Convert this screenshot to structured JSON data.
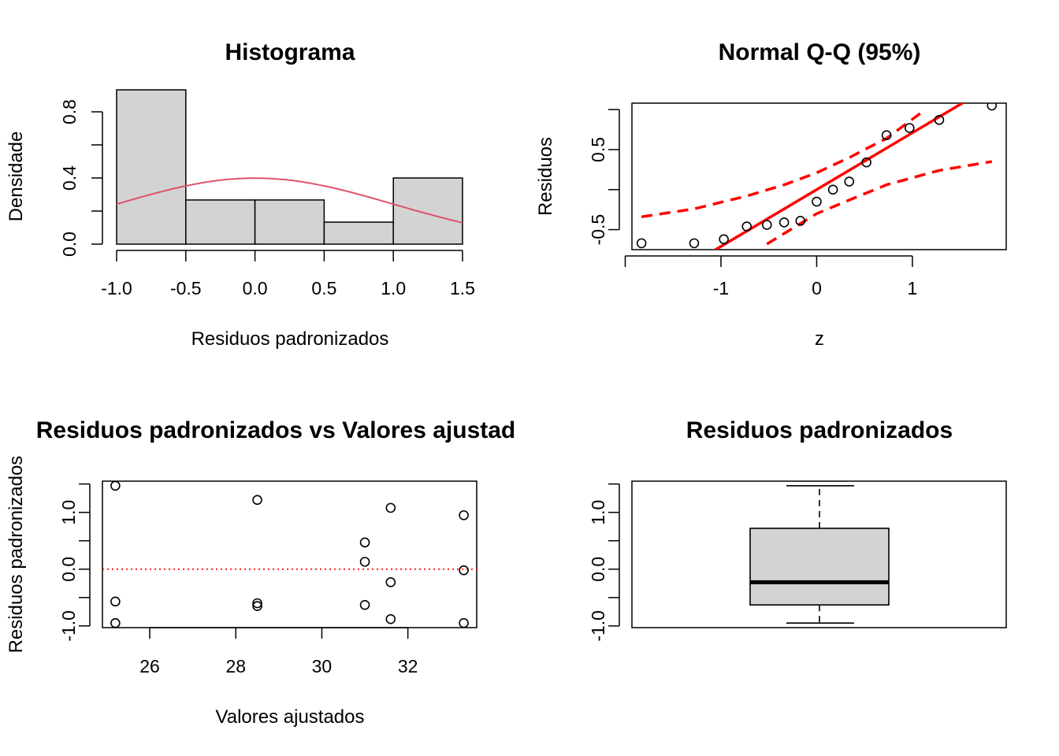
{
  "chart_data": [
    {
      "type": "bar",
      "title": "Histograma",
      "xlabel": "Residuos padronizados",
      "ylabel": "Densidade",
      "xlim": [
        -1.0,
        1.5
      ],
      "ylim": [
        0,
        1.0
      ],
      "xticks": [
        "-1.0",
        "-0.5",
        "0.0",
        "0.5",
        "1.0",
        "1.5"
      ],
      "yticks": [
        "0.0",
        "0.4",
        "0.8"
      ],
      "bins": [
        [
          -1.0,
          -0.5
        ],
        [
          -0.5,
          0.0
        ],
        [
          0.0,
          0.5
        ],
        [
          0.5,
          1.0
        ],
        [
          1.0,
          1.5
        ]
      ],
      "values": [
        0.933,
        0.267,
        0.267,
        0.133,
        0.4
      ],
      "bar_color": "#d3d3d3",
      "overlay": {
        "type": "normal-density",
        "mean": 0,
        "sd": 1,
        "color": "#df536b"
      }
    },
    {
      "type": "scatter",
      "title": "Normal Q-Q (95%)",
      "xlabel": "z",
      "ylabel": "Residuos",
      "xlim": [
        -1.93,
        1.98
      ],
      "ylim": [
        -0.75,
        1.08
      ],
      "xticks": [
        "-1",
        "0",
        "1"
      ],
      "yticks": [
        "-0.5",
        "0.5"
      ],
      "points": [
        [
          -1.83,
          -0.67
        ],
        [
          -1.28,
          -0.67
        ],
        [
          -0.97,
          -0.62
        ],
        [
          -0.73,
          -0.46
        ],
        [
          -0.52,
          -0.44
        ],
        [
          -0.34,
          -0.41
        ],
        [
          -0.17,
          -0.39
        ],
        [
          0.0,
          -0.15
        ],
        [
          0.17,
          0.0
        ],
        [
          0.34,
          0.1
        ],
        [
          0.52,
          0.34
        ],
        [
          0.73,
          0.68
        ],
        [
          0.97,
          0.77
        ],
        [
          1.28,
          0.87
        ],
        [
          1.83,
          1.05
        ]
      ],
      "reference_line": {
        "slope": 0.71,
        "intercept": 0.0,
        "color": "#ff0000"
      },
      "band_upper": [
        [
          -1.83,
          -0.34
        ],
        [
          -1.28,
          -0.24
        ],
        [
          -0.73,
          -0.08
        ],
        [
          -0.34,
          0.06
        ],
        [
          0.0,
          0.21
        ],
        [
          0.34,
          0.4
        ],
        [
          0.73,
          0.64
        ],
        [
          1.08,
          0.95
        ]
      ],
      "band_lower": [
        [
          -0.52,
          -0.68
        ],
        [
          0.0,
          -0.3
        ],
        [
          0.34,
          -0.13
        ],
        [
          0.73,
          0.06
        ],
        [
          1.28,
          0.24
        ],
        [
          1.83,
          0.35
        ]
      ],
      "line_color": "#ff0000"
    },
    {
      "type": "scatter",
      "title": "Residuos padronizados vs Valores ajustad",
      "xlabel": "Valores ajustados",
      "ylabel": "Residuos padronizados",
      "xlim": [
        24.9,
        33.6
      ],
      "ylim": [
        -1.03,
        1.55
      ],
      "xticks": [
        "26",
        "28",
        "30",
        "32"
      ],
      "yticks": [
        "-1.0",
        "0.0",
        "1.0"
      ],
      "points": [
        [
          25.2,
          1.47
        ],
        [
          25.2,
          -0.57
        ],
        [
          25.2,
          -0.95
        ],
        [
          28.5,
          1.22
        ],
        [
          28.5,
          -0.6
        ],
        [
          28.5,
          -0.65
        ],
        [
          31.0,
          0.47
        ],
        [
          31.0,
          0.13
        ],
        [
          31.0,
          -0.63
        ],
        [
          31.6,
          1.08
        ],
        [
          31.6,
          -0.23
        ],
        [
          31.6,
          -0.88
        ],
        [
          33.3,
          0.95
        ],
        [
          33.3,
          -0.02
        ],
        [
          33.3,
          -0.95
        ]
      ],
      "hline": {
        "y": 0.0,
        "color": "#ff0000",
        "style": "dotted"
      }
    },
    {
      "type": "box",
      "title": "Residuos padronizados",
      "ylim": [
        -1.03,
        1.55
      ],
      "yticks": [
        "-1.0",
        "0.0",
        "1.0"
      ],
      "min": -0.95,
      "q1": -0.63,
      "median": -0.23,
      "q3": 0.72,
      "max": 1.47,
      "box_color": "#d3d3d3"
    }
  ]
}
